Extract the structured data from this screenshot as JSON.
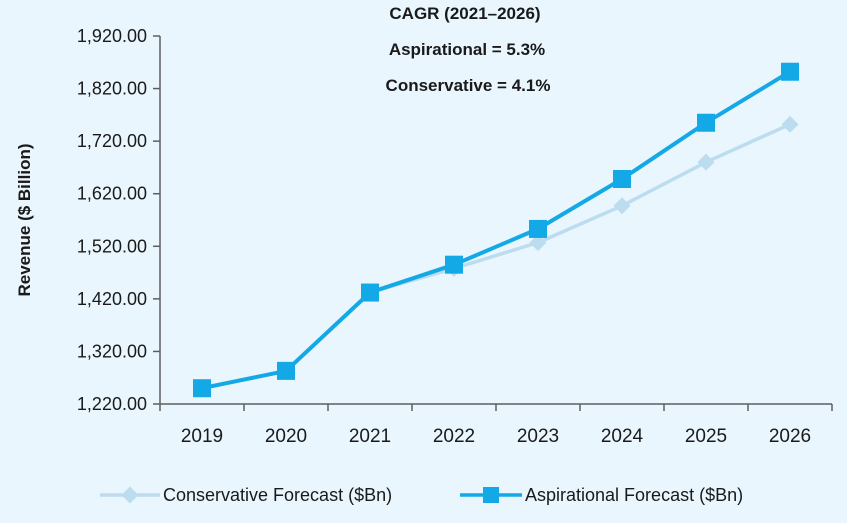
{
  "chart_data": {
    "type": "line",
    "ylabel": "Revenue ($ Billion)",
    "xlabel": "",
    "ylim": [
      1220,
      1920
    ],
    "yticks": [
      "1,920.00",
      "1,820.00",
      "1,720.00",
      "1,620.00",
      "1,520.00",
      "1,420.00",
      "1,320.00",
      "1,220.00"
    ],
    "ytick_values": [
      1920,
      1820,
      1720,
      1620,
      1520,
      1420,
      1320,
      1220
    ],
    "categories": [
      "2019",
      "2020",
      "2021",
      "2022",
      "2023",
      "2024",
      "2025",
      "2026"
    ],
    "series": [
      {
        "name": "Conservative Forecast ($Bn)",
        "marker": "diamond",
        "color": "#bcdcf0",
        "values": [
          1250,
          1283,
          1432,
          1478,
          1527,
          1597,
          1680,
          1752
        ]
      },
      {
        "name": "Aspirational Forecast ($Bn)",
        "marker": "square",
        "color": "#13a8e6",
        "values": [
          1250,
          1283,
          1432,
          1485,
          1553,
          1648,
          1755,
          1852
        ]
      }
    ],
    "annotations": [
      "CAGR (2021–2026)",
      "Aspirational = 5.3%",
      "Conservative = 4.1%"
    ],
    "legend": "bottom"
  }
}
